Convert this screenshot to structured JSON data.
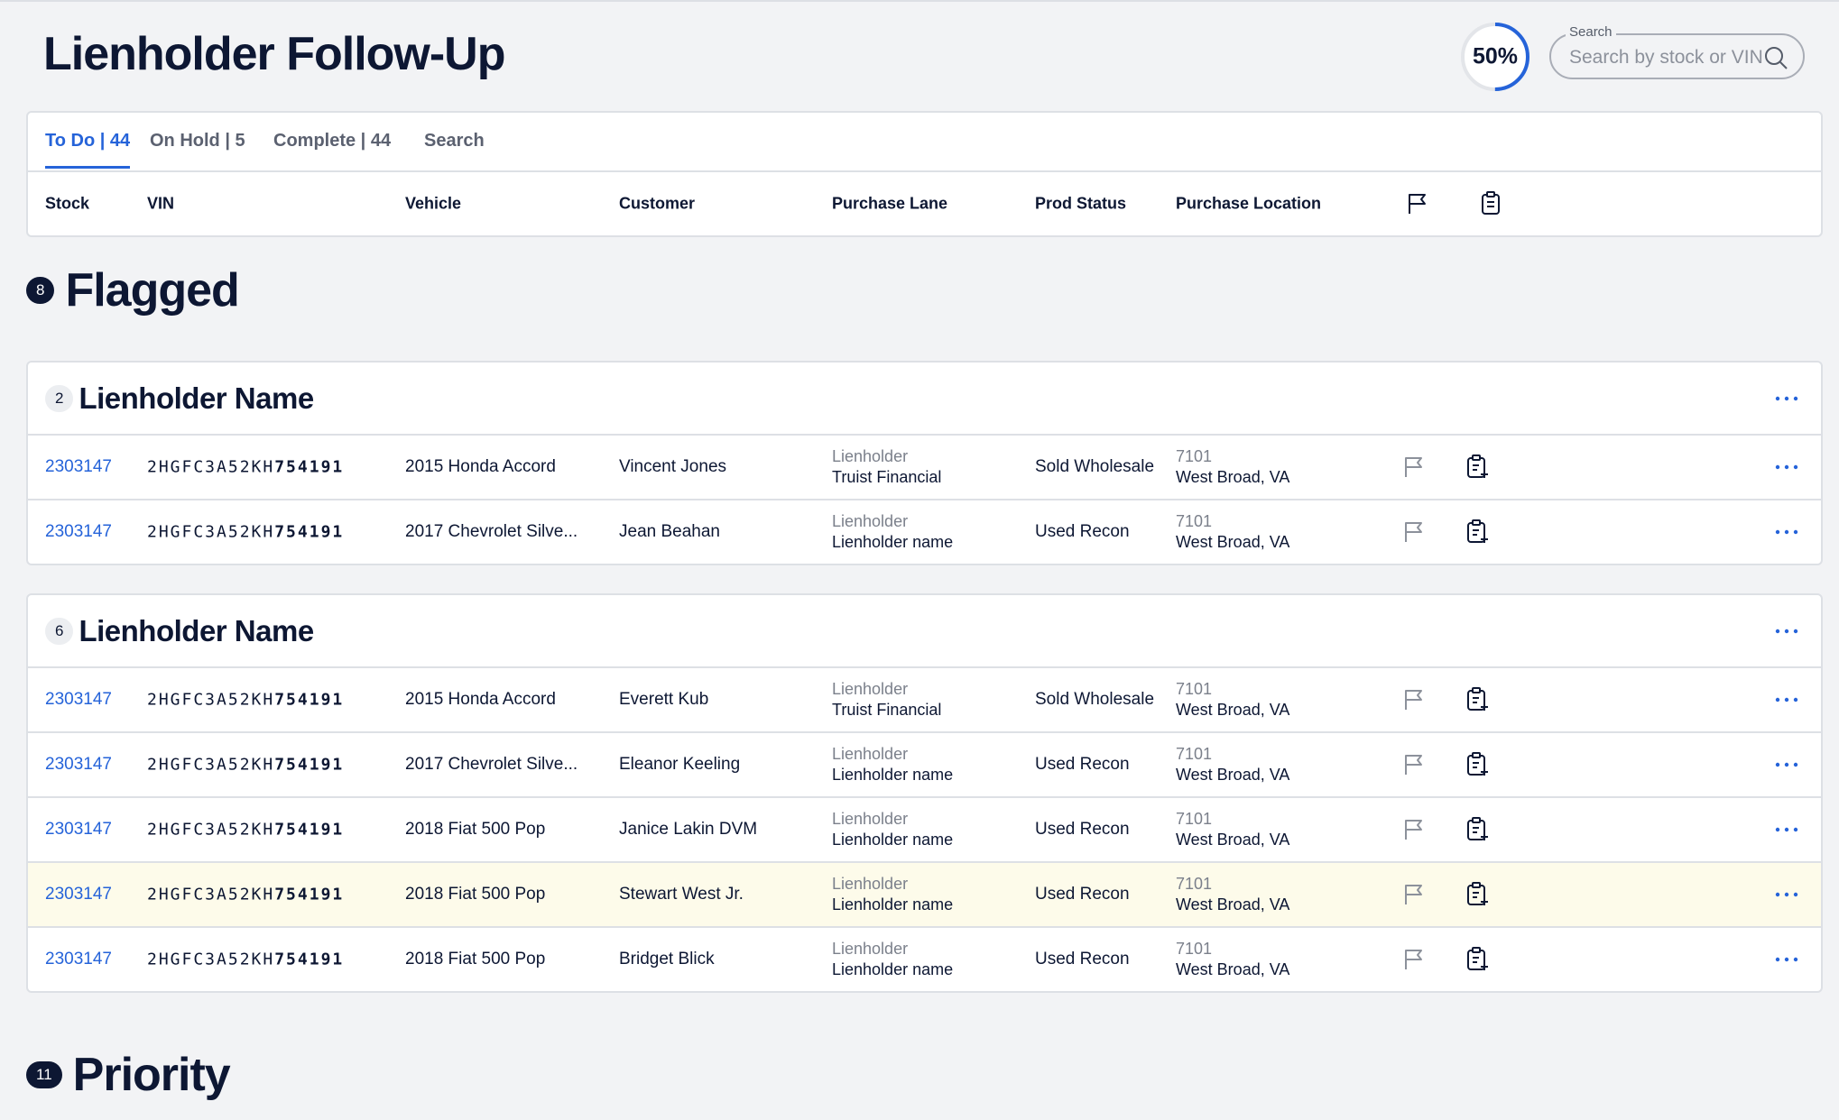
{
  "header": {
    "title": "Lienholder Follow-Up",
    "progress": {
      "value": 50,
      "label": "50%"
    },
    "search_label": "Search",
    "search_placeholder": "Search by stock or VIN"
  },
  "tabs": [
    {
      "label": "To Do | 44",
      "active": true
    },
    {
      "label": "On Hold | 5",
      "active": false
    },
    {
      "label": "Complete | 44",
      "active": false
    },
    {
      "label": "Search",
      "active": false
    }
  ],
  "columns": [
    "Stock",
    "VIN",
    "Vehicle",
    "Customer",
    "Purchase Lane",
    "Prod Status",
    "Purchase Location"
  ],
  "sections": [
    {
      "count": 8,
      "title": "Flagged",
      "groups": [
        {
          "count": 2,
          "name": "Lienholder Name",
          "rows": [
            {
              "stock": "2303147",
              "vin_prefix": "2HGFC3A52KH",
              "vin_suffix": "754191",
              "vehicle": "2015 Honda Accord",
              "customer": "Vincent Jones",
              "lane_label": "Lienholder",
              "lane": "Truist Financial",
              "status": "Sold Wholesale",
              "location_code": "7101",
              "location": "West Broad, VA",
              "highlighted": false
            },
            {
              "stock": "2303147",
              "vin_prefix": "2HGFC3A52KH",
              "vin_suffix": "754191",
              "vehicle": "2017 Chevrolet Silve...",
              "customer": "Jean Beahan",
              "lane_label": "Lienholder",
              "lane": "Lienholder name",
              "status": "Used Recon",
              "location_code": "7101",
              "location": "West Broad, VA",
              "highlighted": false
            }
          ]
        },
        {
          "count": 6,
          "name": "Lienholder Name",
          "rows": [
            {
              "stock": "2303147",
              "vin_prefix": "2HGFC3A52KH",
              "vin_suffix": "754191",
              "vehicle": "2015 Honda Accord",
              "customer": "Everett Kub",
              "lane_label": "Lienholder",
              "lane": "Truist Financial",
              "status": "Sold Wholesale",
              "location_code": "7101",
              "location": "West Broad, VA",
              "highlighted": false
            },
            {
              "stock": "2303147",
              "vin_prefix": "2HGFC3A52KH",
              "vin_suffix": "754191",
              "vehicle": "2017 Chevrolet Silve...",
              "customer": "Eleanor Keeling",
              "lane_label": "Lienholder",
              "lane": "Lienholder name",
              "status": "Used Recon",
              "location_code": "7101",
              "location": "West Broad, VA",
              "highlighted": false
            },
            {
              "stock": "2303147",
              "vin_prefix": "2HGFC3A52KH",
              "vin_suffix": "754191",
              "vehicle": "2018 Fiat 500 Pop",
              "customer": "Janice Lakin DVM",
              "lane_label": "Lienholder",
              "lane": "Lienholder name",
              "status": "Used Recon",
              "location_code": "7101",
              "location": "West Broad, VA",
              "highlighted": false
            },
            {
              "stock": "2303147",
              "vin_prefix": "2HGFC3A52KH",
              "vin_suffix": "754191",
              "vehicle": "2018 Fiat 500 Pop",
              "customer": "Stewart West Jr.",
              "lane_label": "Lienholder",
              "lane": "Lienholder name",
              "status": "Used Recon",
              "location_code": "7101",
              "location": "West Broad, VA",
              "highlighted": true
            },
            {
              "stock": "2303147",
              "vin_prefix": "2HGFC3A52KH",
              "vin_suffix": "754191",
              "vehicle": "2018 Fiat 500 Pop",
              "customer": "Bridget Blick",
              "lane_label": "Lienholder",
              "lane": "Lienholder name",
              "status": "Used Recon",
              "location_code": "7101",
              "location": "West Broad, VA",
              "highlighted": false
            }
          ]
        }
      ]
    },
    {
      "count": 11,
      "title": "Priority",
      "groups": []
    }
  ]
}
